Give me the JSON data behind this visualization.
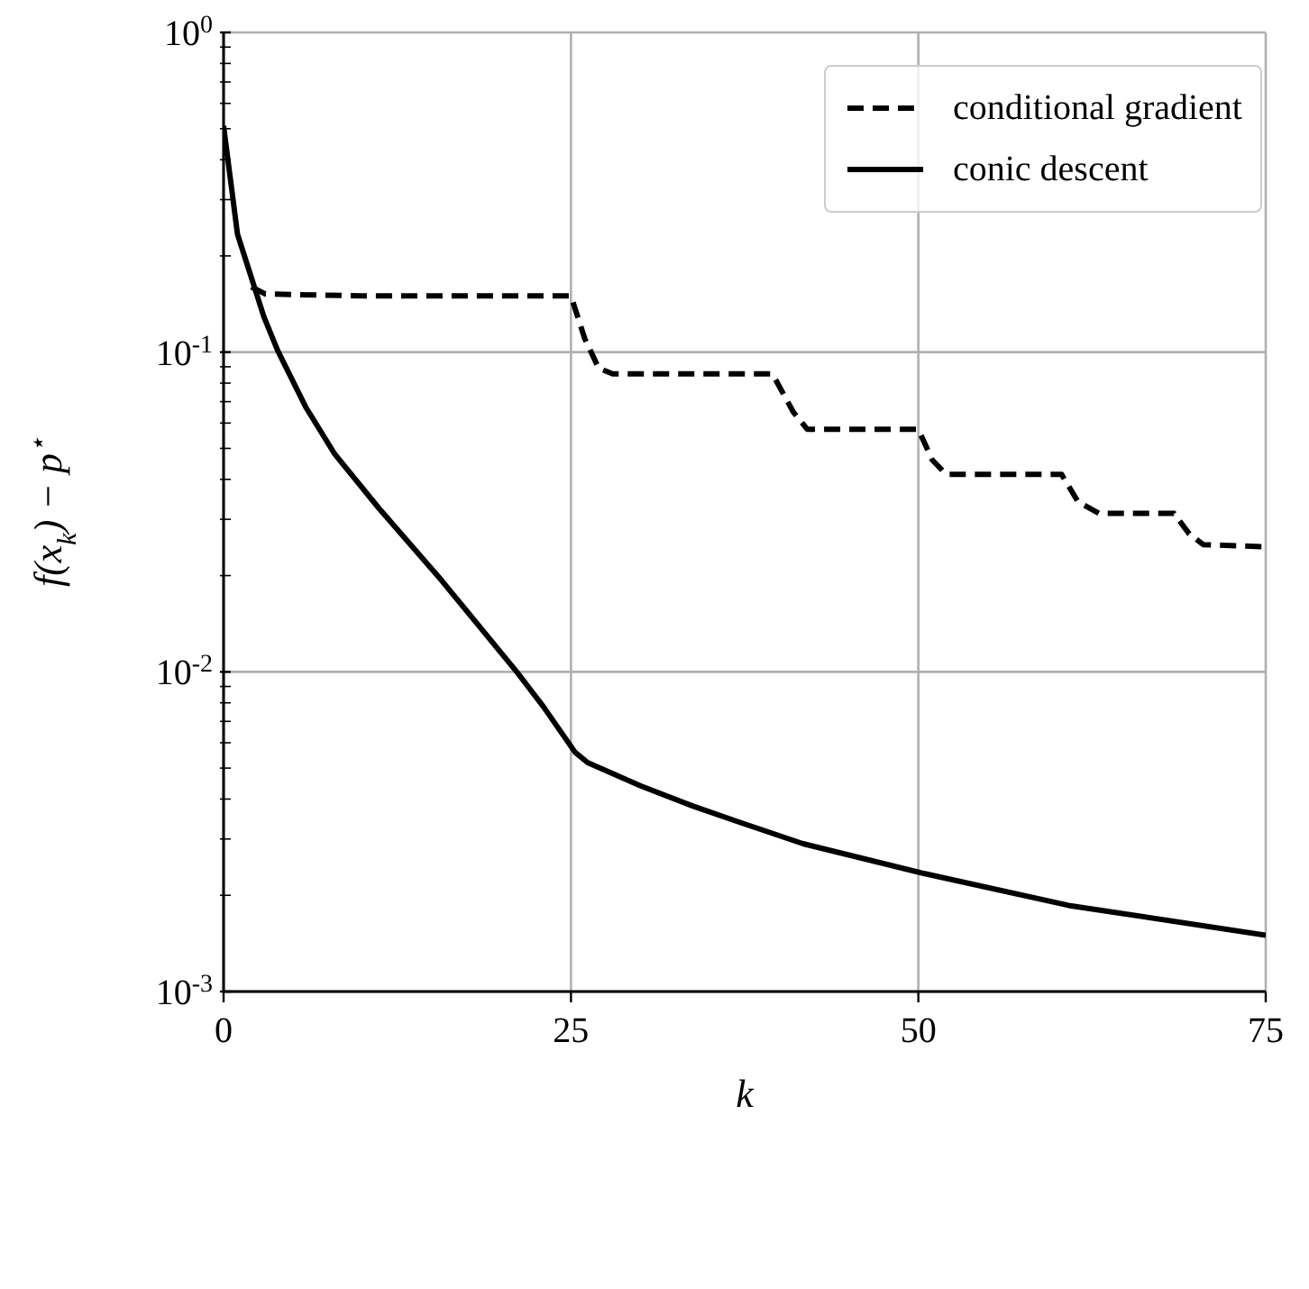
{
  "chart_data": {
    "type": "line",
    "xlabel": "k",
    "ylabel": "f(x$_{k}$) − p$^{⋆}$",
    "xlim": [
      0,
      75
    ],
    "xticks": [
      0,
      25,
      50,
      75
    ],
    "ylim": [
      0.001,
      1
    ],
    "log": "y",
    "yticks": [
      {
        "value": 0.001,
        "label": "10$^{-3}$"
      },
      {
        "value": 0.002,
        "label": null
      },
      {
        "value": 0.003,
        "label": null
      },
      {
        "value": 0.004,
        "label": null
      },
      {
        "value": 0.005,
        "label": null
      },
      {
        "value": 0.006,
        "label": null
      },
      {
        "value": 0.007,
        "label": null
      },
      {
        "value": 0.008,
        "label": null
      },
      {
        "value": 0.009,
        "label": null
      },
      {
        "value": 0.01,
        "label": "10$^{-2}$"
      },
      {
        "value": 0.02,
        "label": null
      },
      {
        "value": 0.03,
        "label": null
      },
      {
        "value": 0.04,
        "label": null
      },
      {
        "value": 0.05,
        "label": null
      },
      {
        "value": 0.06,
        "label": null
      },
      {
        "value": 0.07,
        "label": null
      },
      {
        "value": 0.08,
        "label": null
      },
      {
        "value": 0.09,
        "label": null
      },
      {
        "value": 0.1,
        "label": "10$^{-1}$"
      },
      {
        "value": 0.2,
        "label": null
      },
      {
        "value": 0.3,
        "label": null
      },
      {
        "value": 0.4,
        "label": null
      },
      {
        "value": 0.5,
        "label": null
      },
      {
        "value": 0.6,
        "label": null
      },
      {
        "value": 0.7,
        "label": null
      },
      {
        "value": 0.8,
        "label": null
      },
      {
        "value": 0.9,
        "label": null
      },
      {
        "value": 1,
        "label": "10$^{0}$"
      }
    ],
    "grid": true,
    "legend": "top right",
    "marker": "none",
    "series": [
      {
        "name": "conditional gradient",
        "color": "#000000",
        "line_style": "dashed",
        "x": [
          2,
          3,
          10,
          25,
          26,
          27,
          28,
          39.5,
          41,
          42,
          50,
          51,
          52,
          60.3,
          61.5,
          63,
          68.4,
          69.5,
          70.5,
          75
        ],
        "values": [
          0.16,
          0.152,
          0.15,
          0.15,
          0.11,
          0.089,
          0.0855,
          0.0855,
          0.065,
          0.0574,
          0.0574,
          0.046,
          0.0415,
          0.0415,
          0.034,
          0.0313,
          0.0313,
          0.027,
          0.025,
          0.0246
        ]
      },
      {
        "name": "conic descent",
        "color": "#000000",
        "line_style": "solid",
        "x": [
          0,
          1,
          2.9,
          3.9,
          5.9,
          8,
          11.2,
          15.7,
          21.1,
          23,
          25.3,
          26.2,
          30,
          33.8,
          37,
          41.7,
          50.4,
          60.8,
          75
        ],
        "values": [
          0.51,
          0.234,
          0.129,
          0.101,
          0.0675,
          0.048,
          0.0324,
          0.0193,
          0.01,
          0.0078,
          0.0056,
          0.0052,
          0.0044,
          0.0038,
          0.0034,
          0.0029,
          0.00234,
          0.00186,
          0.0015
        ]
      }
    ]
  }
}
